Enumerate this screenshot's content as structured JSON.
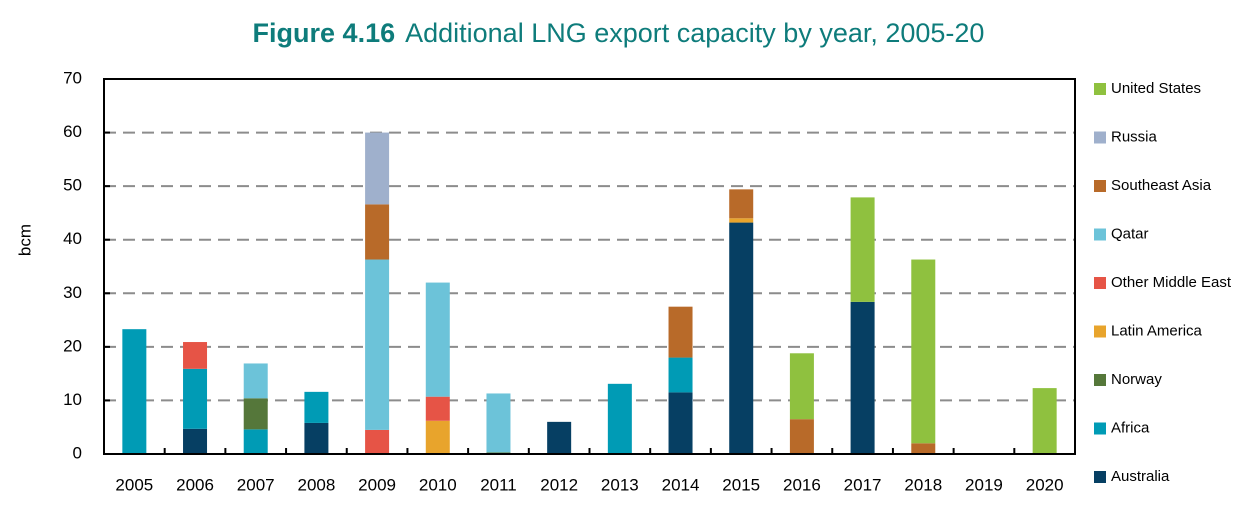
{
  "chart_data": {
    "type": "bar",
    "stacked": true,
    "title_prefix": "Figure 4.16",
    "title": "Additional LNG export capacity by year, 2005-20",
    "xlabel": "",
    "ylabel": "bcm",
    "ylim": [
      0,
      70
    ],
    "yticks": [
      0,
      10,
      20,
      30,
      40,
      50,
      60,
      70
    ],
    "grid": "horizontal dashed",
    "legend_position": "right",
    "categories": [
      "2005",
      "2006",
      "2007",
      "2008",
      "2009",
      "2010",
      "2011",
      "2012",
      "2013",
      "2014",
      "2015",
      "2016",
      "2017",
      "2018",
      "2019",
      "2020"
    ],
    "series": [
      {
        "name": "Australia",
        "color": "#063f63",
        "values": [
          0,
          4.7,
          0,
          5.8,
          0,
          0,
          0,
          6.0,
          0,
          11.5,
          43.2,
          0,
          28.4,
          0,
          0,
          0
        ]
      },
      {
        "name": "Africa",
        "color": "#009bb5",
        "values": [
          23.3,
          11.2,
          4.6,
          5.8,
          0,
          0,
          0,
          0,
          13.1,
          6.5,
          0,
          0,
          0,
          0,
          0,
          0
        ]
      },
      {
        "name": "Norway",
        "color": "#55773a",
        "values": [
          0,
          0,
          5.8,
          0,
          0,
          0,
          0.3,
          0,
          0,
          0,
          0,
          0,
          0,
          0,
          0,
          0
        ]
      },
      {
        "name": "Latin America",
        "color": "#e8a42c",
        "values": [
          0,
          0,
          0,
          0,
          0,
          6.2,
          0,
          0,
          0,
          0,
          0.8,
          0,
          0,
          0,
          0,
          0
        ]
      },
      {
        "name": "Other Middle East",
        "color": "#e65446",
        "values": [
          0,
          5.0,
          0,
          0,
          4.5,
          4.5,
          0,
          0,
          0,
          0,
          0,
          0,
          0,
          0,
          0,
          0
        ]
      },
      {
        "name": "Qatar",
        "color": "#6cc3d9",
        "values": [
          0,
          0,
          6.5,
          0,
          31.8,
          21.3,
          11.0,
          0,
          0,
          0,
          0,
          0,
          0,
          0,
          0,
          0
        ]
      },
      {
        "name": "Southeast Asia",
        "color": "#b86a29",
        "values": [
          0,
          0,
          0,
          0,
          10.3,
          0,
          0,
          0,
          0,
          9.5,
          5.4,
          6.5,
          0,
          2.0,
          0,
          0
        ]
      },
      {
        "name": "Russia",
        "color": "#9fb0cc",
        "values": [
          0,
          0,
          0,
          0,
          13.4,
          0,
          0,
          0,
          0,
          0,
          0,
          0,
          0,
          0,
          0,
          0
        ]
      },
      {
        "name": "United States",
        "color": "#8fc13f",
        "values": [
          0,
          0,
          0,
          0,
          0,
          0,
          0,
          0,
          0,
          0,
          0,
          12.3,
          19.5,
          34.3,
          0,
          12.3
        ]
      }
    ],
    "legend_order": [
      "United States",
      "Russia",
      "Southeast Asia",
      "Qatar",
      "Other Middle East",
      "Latin America",
      "Norway",
      "Africa",
      "Australia"
    ]
  }
}
